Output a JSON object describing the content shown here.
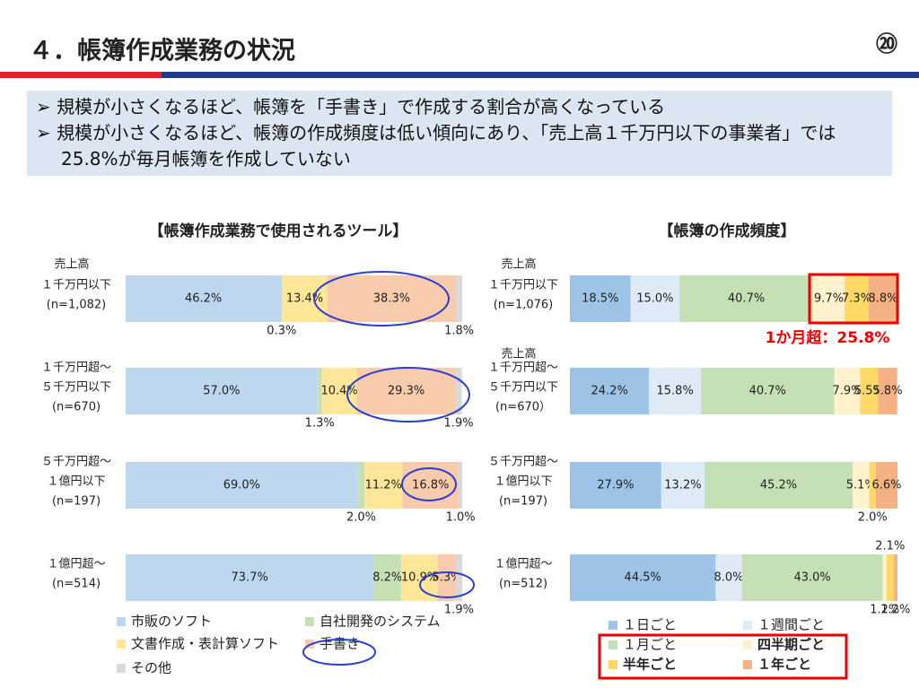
{
  "header": {
    "title": "４．帳簿作成業務の状況",
    "page": "⑳"
  },
  "bullets": [
    "規模が小さくなるほど、帳簿を「手書き」で作成する割合が高くなっている",
    "規模が小さくなるほど、帳簿の作成頻度は低い傾向にあり、「売上高１千万円以下の事業者」では25.8%が毎月帳簿を作成していない"
  ],
  "chart_data": [
    {
      "type": "stacked-bar",
      "orientation": "horizontal",
      "title": "【帳簿作成業務で使用されるツール】",
      "axis_label": "売上高",
      "categories": [
        [
          "１千万円以下",
          "(n=1,082)"
        ],
        [
          "１千万円超～",
          "５千万円以下",
          "(n=670)"
        ],
        [
          "５千万円超～",
          "１億円以下",
          "(n=197)"
        ],
        [
          "１億円超～",
          "(n=514)"
        ]
      ],
      "xlim": [
        0,
        100
      ],
      "series": [
        {
          "name": "市販のソフト",
          "color": "#bdd7ee",
          "values": [
            46.2,
            57.0,
            69.0,
            73.7
          ],
          "value_labels": [
            "46.2%",
            "57.0%",
            "69.0%",
            "73.7%"
          ]
        },
        {
          "name": "自社開発のシステム",
          "color": "#c5e0b4",
          "values": [
            0.3,
            1.3,
            2.0,
            8.2
          ],
          "value_labels": [
            "0.3%",
            "1.3%",
            "2.0%",
            "8.2%"
          ]
        },
        {
          "name": "文書作成・表計算ソフト",
          "color": "#ffe699",
          "values": [
            13.4,
            10.4,
            11.2,
            10.9
          ],
          "value_labels": [
            "13.4%",
            "10.4%",
            "11.2%",
            "10.9%"
          ]
        },
        {
          "name": "手書き",
          "color": "#f8cbad",
          "values": [
            38.3,
            29.3,
            16.8,
            5.3
          ],
          "value_labels": [
            "38.3%",
            "29.3%",
            "16.8%",
            "5.3%"
          ]
        },
        {
          "name": "その他",
          "color": "#d9d9d9",
          "values": [
            1.8,
            1.9,
            1.0,
            1.9
          ],
          "value_labels": [
            "1.8%",
            "1.9%",
            "1.0%",
            "1.9%"
          ]
        }
      ]
    },
    {
      "type": "stacked-bar",
      "orientation": "horizontal",
      "title": "【帳簿の作成頻度】",
      "axis_label": "売上高",
      "annotation": "1か月超：25.8%",
      "categories": [
        [
          "１千万円以下",
          "(n=1,076)"
        ],
        [
          "１千万円超～",
          "５千万円以下",
          "(n=670）"
        ],
        [
          "５千万円超～",
          "１億円以下",
          "(n=197)"
        ],
        [
          "１億円超～",
          "(n=512)"
        ]
      ],
      "xlim": [
        0,
        100
      ],
      "series": [
        {
          "name": "１日ごと",
          "color": "#9dc3e6",
          "values": [
            18.5,
            24.2,
            27.9,
            44.5
          ],
          "value_labels": [
            "18.5%",
            "24.2%",
            "27.9%",
            "44.5%"
          ]
        },
        {
          "name": "１週間ごと",
          "color": "#deebf7",
          "values": [
            15.0,
            15.8,
            13.2,
            8.0
          ],
          "value_labels": [
            "15.0%",
            "15.8%",
            "13.2%",
            "8.0%"
          ]
        },
        {
          "name": "１月ごと",
          "color": "#c5e0b4",
          "values": [
            40.7,
            40.7,
            45.2,
            43.0
          ],
          "value_labels": [
            "40.7%",
            "40.7%",
            "45.2%",
            "43.0%"
          ]
        },
        {
          "name": "四半期ごと",
          "color": "#fff2cc",
          "values": [
            9.7,
            7.9,
            5.1,
            1.2
          ],
          "value_labels": [
            "9.7%",
            "7.9%",
            "5.1%",
            "1.2%"
          ]
        },
        {
          "name": "半年ごと",
          "color": "#ffd966",
          "values": [
            7.3,
            5.5,
            2.0,
            2.1
          ],
          "value_labels": [
            "7.3%",
            "5.5%",
            "2.0%",
            "2.1%"
          ]
        },
        {
          "name": "１年ごと",
          "color": "#f4b183",
          "values": [
            8.8,
            5.8,
            6.6,
            1.2
          ],
          "value_labels": [
            "8.8%",
            "5.8%",
            "6.6%",
            "1.2%"
          ]
        }
      ]
    }
  ]
}
